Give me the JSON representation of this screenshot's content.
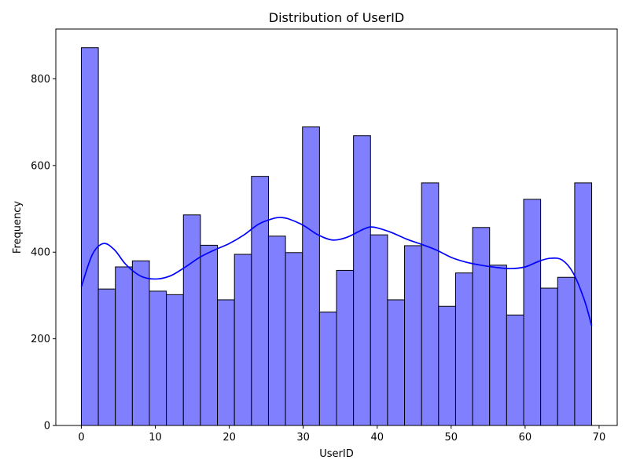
{
  "chart_data": {
    "type": "bar",
    "title": "Distribution of UserID",
    "xlabel": "UserID",
    "ylabel": "Frequency",
    "bin_edges": [
      0,
      2.3,
      4.6,
      6.9,
      9.2,
      11.5,
      13.8,
      16.1,
      18.4,
      20.7,
      23.0,
      25.3,
      27.6,
      29.9,
      32.2,
      34.5,
      36.8,
      39.1,
      41.4,
      43.7,
      46.0,
      48.3,
      50.6,
      52.9,
      55.2,
      57.5,
      59.8,
      62.1,
      64.4,
      66.7,
      69.0
    ],
    "values": [
      872,
      315,
      366,
      380,
      310,
      302,
      486,
      416,
      290,
      395,
      575,
      437,
      399,
      689,
      262,
      358,
      669,
      440,
      290,
      415,
      560,
      275,
      352,
      457,
      370,
      255,
      522,
      317,
      342,
      560
    ],
    "kde": {
      "x": [
        0,
        1.5,
        3,
        4.5,
        6,
        8,
        10,
        12,
        14,
        16,
        18,
        20,
        22,
        24,
        26,
        27,
        28,
        30,
        32,
        34,
        36,
        38,
        39,
        40,
        42,
        44,
        46,
        48,
        50,
        52,
        54,
        56,
        58,
        60,
        62,
        63.5,
        65,
        66.5,
        68,
        69
      ],
      "y": [
        320,
        395,
        420,
        405,
        372,
        345,
        338,
        345,
        365,
        388,
        405,
        420,
        440,
        465,
        478,
        480,
        477,
        462,
        440,
        428,
        435,
        452,
        458,
        456,
        445,
        430,
        418,
        405,
        388,
        377,
        370,
        365,
        362,
        366,
        380,
        386,
        382,
        352,
        290,
        230
      ]
    },
    "xlim": [
      -3.45,
      72.45
    ],
    "ylim": [
      0,
      915
    ],
    "xticks": [
      0,
      10,
      20,
      30,
      40,
      50,
      60,
      70
    ],
    "yticks": [
      0,
      200,
      400,
      600,
      800
    ],
    "colors": {
      "bar_fill": "#8080ff",
      "bar_edge": "#000000",
      "kde_line": "#0000ff"
    },
    "grid": false
  }
}
